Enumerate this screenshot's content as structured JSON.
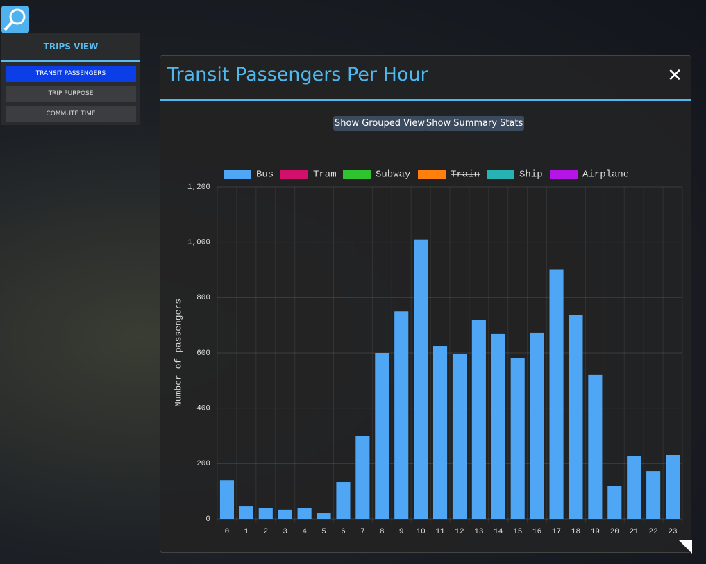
{
  "sidebar": {
    "title": "TRIPS VIEW",
    "buttons": [
      "TRANSIT PASSENGERS",
      "TRIP PURPOSE",
      "COMMUTE TIME"
    ]
  },
  "dialog": {
    "title": "Transit Passengers Per Hour",
    "close": "✕",
    "buttons": [
      "Show Grouped View",
      "Show Summary Stats"
    ]
  },
  "chart_data": {
    "type": "bar",
    "y_label": "Number of passengers",
    "categories": [
      "0",
      "1",
      "2",
      "3",
      "4",
      "5",
      "6",
      "7",
      "8",
      "9",
      "10",
      "11",
      "12",
      "13",
      "14",
      "15",
      "16",
      "17",
      "18",
      "19",
      "20",
      "21",
      "22",
      "23"
    ],
    "series": [
      {
        "name": "Bus",
        "color": "#4ea6f5",
        "values": [
          140,
          45,
          40,
          33,
          40,
          20,
          133,
          300,
          600,
          750,
          1010,
          625,
          597,
          720,
          668,
          580,
          673,
          900,
          736,
          520,
          118,
          226,
          173,
          231
        ]
      },
      {
        "name": "Tram",
        "color": "#d0106a",
        "values": [
          null,
          null,
          null,
          null,
          null,
          null,
          null,
          null,
          null,
          null,
          null,
          null,
          null,
          null,
          null,
          null,
          null,
          null,
          null,
          null,
          null,
          null,
          null,
          null
        ]
      },
      {
        "name": "Subway",
        "color": "#2fc42f",
        "values": [
          null,
          null,
          null,
          null,
          null,
          null,
          null,
          null,
          null,
          null,
          null,
          null,
          null,
          null,
          null,
          null,
          null,
          null,
          null,
          null,
          null,
          null,
          null,
          null
        ]
      },
      {
        "name": "Train",
        "color": "#ff7f0e",
        "hidden": true,
        "values": [
          null,
          null,
          null,
          null,
          null,
          null,
          null,
          null,
          null,
          null,
          null,
          null,
          null,
          null,
          null,
          null,
          null,
          null,
          null,
          null,
          null,
          null,
          null,
          null
        ]
      },
      {
        "name": "Ship",
        "color": "#27b3b3",
        "values": [
          null,
          null,
          null,
          null,
          null,
          null,
          null,
          null,
          null,
          null,
          null,
          null,
          null,
          null,
          null,
          null,
          null,
          null,
          null,
          null,
          null,
          null,
          null,
          null
        ]
      },
      {
        "name": "Airplane",
        "color": "#b414e6",
        "values": [
          null,
          null,
          null,
          null,
          null,
          null,
          null,
          null,
          null,
          null,
          null,
          null,
          null,
          null,
          null,
          null,
          null,
          null,
          null,
          null,
          null,
          null,
          null,
          null
        ]
      }
    ],
    "ylim": [
      0,
      1200
    ],
    "yticks": [
      0,
      200,
      400,
      600,
      800,
      {
        "value": 1000,
        "label": "1,000"
      },
      {
        "value": 1200,
        "label": "1,200"
      }
    ],
    "grid": true
  }
}
